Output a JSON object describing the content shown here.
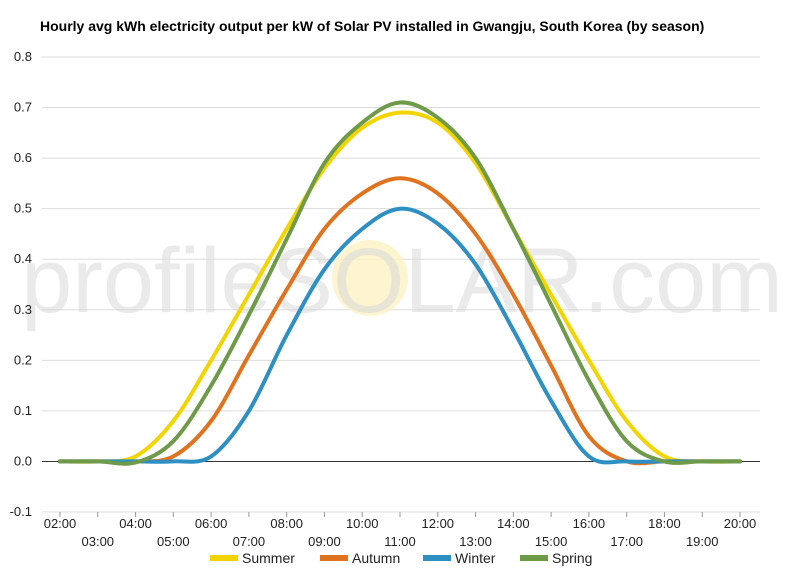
{
  "chart_data": {
    "type": "line",
    "title": "Hourly avg kWh electricity output per kW of Solar PV installed in Gwangju, South Korea (by season)",
    "xlabel": "",
    "ylabel": "",
    "ylim": [
      -0.1,
      0.8
    ],
    "yticks": [
      "0.8",
      "0.7",
      "0.6",
      "0.5",
      "0.4",
      "0.3",
      "0.2",
      "0.1",
      "0.0",
      "-0.1"
    ],
    "x": [
      "02:00",
      "03:00",
      "04:00",
      "05:00",
      "06:00",
      "07:00",
      "08:00",
      "09:00",
      "10:00",
      "11:00",
      "12:00",
      "13:00",
      "14:00",
      "15:00",
      "16:00",
      "17:00",
      "18:00",
      "19:00",
      "20:00"
    ],
    "grid": true,
    "legend_position": "bottom",
    "series": [
      {
        "name": "Summer",
        "color": "#f2d500",
        "values": [
          0.0,
          0.0,
          0.01,
          0.08,
          0.2,
          0.33,
          0.46,
          0.58,
          0.66,
          0.69,
          0.67,
          0.59,
          0.46,
          0.33,
          0.2,
          0.08,
          0.01,
          0.0,
          0.0
        ]
      },
      {
        "name": "Autumn",
        "color": "#e0731f",
        "values": [
          0.0,
          0.0,
          0.0,
          0.01,
          0.08,
          0.21,
          0.34,
          0.46,
          0.53,
          0.56,
          0.53,
          0.45,
          0.33,
          0.19,
          0.05,
          0.0,
          0.0,
          0.0,
          0.0
        ]
      },
      {
        "name": "Winter",
        "color": "#2e8fc2",
        "values": [
          0.0,
          0.0,
          0.0,
          0.0,
          0.01,
          0.1,
          0.25,
          0.38,
          0.46,
          0.5,
          0.47,
          0.39,
          0.26,
          0.12,
          0.01,
          0.0,
          0.0,
          0.0,
          0.0
        ]
      },
      {
        "name": "Spring",
        "color": "#6e9a4a",
        "values": [
          0.0,
          0.0,
          -0.002,
          0.04,
          0.15,
          0.29,
          0.44,
          0.59,
          0.67,
          0.71,
          0.68,
          0.6,
          0.46,
          0.31,
          0.16,
          0.04,
          0.0,
          0.0,
          0.0
        ]
      }
    ]
  },
  "watermark": {
    "text": "profileSOLAR.com"
  }
}
